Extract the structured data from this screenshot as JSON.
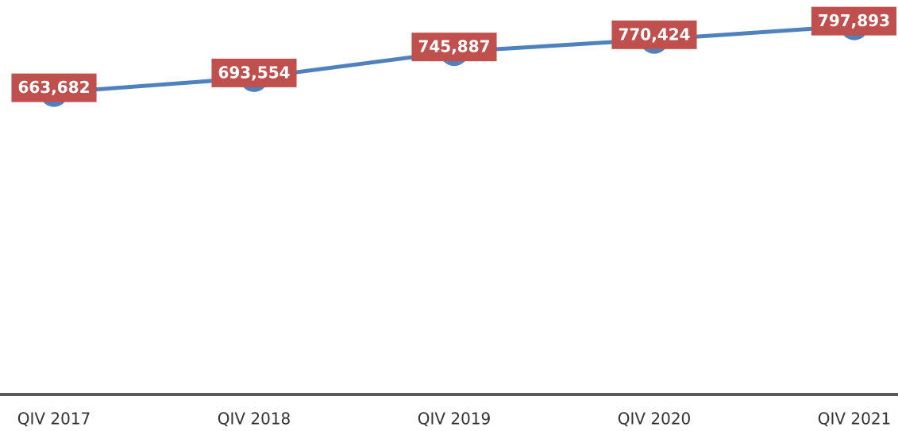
{
  "chart_data": {
    "type": "line",
    "categories": [
      "QIV 2017",
      "QIV 2018",
      "QIV 2019",
      "QIV 2020",
      "QIV 2021"
    ],
    "series": [
      {
        "color": "#4f81bd",
        "values": [
          663682,
          693554,
          745887,
          770424,
          797893
        ],
        "value_labels": [
          "663,682",
          "693,554",
          "745,887",
          "770,424",
          "797,893"
        ]
      }
    ],
    "label_color": "#c0504d",
    "ylim": [
      0,
      850000
    ]
  }
}
